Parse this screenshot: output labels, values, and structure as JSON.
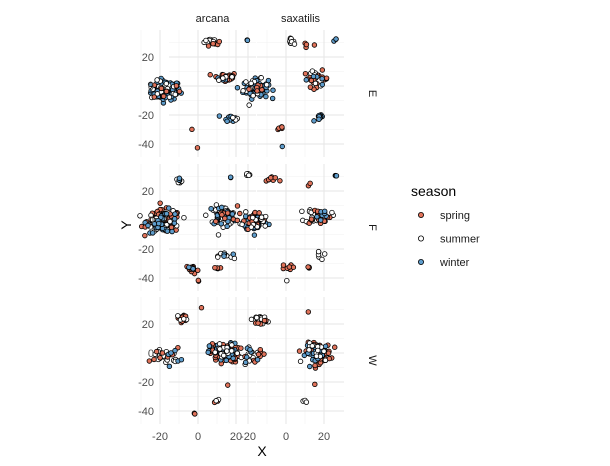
{
  "chart_data": {
    "type": "scatter",
    "facet_columns": [
      "arcana",
      "saxatilis"
    ],
    "facet_rows": [
      "E",
      "F",
      "W"
    ],
    "xlabel": "X",
    "ylabel": "Y",
    "x_ticks": [
      -20,
      0,
      20
    ],
    "y_ticks": [
      -40,
      -20,
      0,
      20
    ],
    "xlim": [
      -35,
      30
    ],
    "ylim": [
      -45,
      36
    ],
    "legend": {
      "title": "season",
      "position": "right",
      "entries": [
        {
          "label": "spring",
          "color": "#E1735A"
        },
        {
          "label": "summer",
          "color": "#FFFFFF"
        },
        {
          "label": "winter",
          "color": "#5E9CCB"
        }
      ]
    },
    "grid": true,
    "clusters": [
      {
        "facet": "arcana|E",
        "season": "winter",
        "cx": -17,
        "cy": -3,
        "sx": 7,
        "sy": 6,
        "n": 90
      },
      {
        "facet": "arcana|E",
        "season": "summer",
        "cx": -17,
        "cy": -3,
        "sx": 7,
        "sy": 6,
        "n": 18
      },
      {
        "facet": "arcana|E",
        "season": "spring",
        "cx": -17,
        "cy": -3,
        "sx": 7,
        "sy": 6,
        "n": 8
      },
      {
        "facet": "arcana|E",
        "season": "spring",
        "cx": 14,
        "cy": 6,
        "sx": 6,
        "sy": 3,
        "n": 24
      },
      {
        "facet": "arcana|E",
        "season": "winter",
        "cx": 14,
        "cy": 6,
        "sx": 6,
        "sy": 3,
        "n": 6
      },
      {
        "facet": "arcana|E",
        "season": "summer",
        "cx": 14,
        "cy": 6,
        "sx": 6,
        "sy": 3,
        "n": 5
      },
      {
        "facet": "arcana|E",
        "season": "summer",
        "cx": 8,
        "cy": 31,
        "sx": 4,
        "sy": 2,
        "n": 12
      },
      {
        "facet": "arcana|E",
        "season": "spring",
        "cx": 8,
        "cy": 29,
        "sx": 4,
        "sy": 2,
        "n": 5
      },
      {
        "facet": "arcana|E",
        "season": "winter",
        "cx": 26,
        "cy": 32,
        "sx": 1,
        "sy": 1,
        "n": 3
      },
      {
        "facet": "arcana|E",
        "season": "winter",
        "cx": 17,
        "cy": -22,
        "sx": 3,
        "sy": 2,
        "n": 14
      },
      {
        "facet": "arcana|E",
        "season": "summer",
        "cx": 17,
        "cy": -22,
        "sx": 3,
        "sy": 2,
        "n": 3
      },
      {
        "facet": "arcana|E",
        "season": "spring",
        "cx": -3,
        "cy": -30,
        "sx": 0.5,
        "sy": 0.5,
        "n": 1
      },
      {
        "facet": "arcana|E",
        "season": "spring",
        "cx": 0,
        "cy": -42,
        "sx": 0.5,
        "sy": 0.5,
        "n": 1
      },
      {
        "facet": "saxatilis|E",
        "season": "winter",
        "cx": -16,
        "cy": -2,
        "sx": 6,
        "sy": 6,
        "n": 60
      },
      {
        "facet": "saxatilis|E",
        "season": "summer",
        "cx": -16,
        "cy": -2,
        "sx": 6,
        "sy": 6,
        "n": 14
      },
      {
        "facet": "saxatilis|E",
        "season": "spring",
        "cx": -16,
        "cy": -2,
        "sx": 6,
        "sy": 6,
        "n": 6
      },
      {
        "facet": "saxatilis|E",
        "season": "spring",
        "cx": 16,
        "cy": 5,
        "sx": 6,
        "sy": 5,
        "n": 22
      },
      {
        "facet": "saxatilis|E",
        "season": "summer",
        "cx": 16,
        "cy": 5,
        "sx": 6,
        "sy": 5,
        "n": 6
      },
      {
        "facet": "saxatilis|E",
        "season": "winter",
        "cx": 16,
        "cy": 5,
        "sx": 6,
        "sy": 5,
        "n": 5
      },
      {
        "facet": "saxatilis|E",
        "season": "summer",
        "cx": 2,
        "cy": 31,
        "sx": 2,
        "sy": 1.5,
        "n": 12
      },
      {
        "facet": "saxatilis|E",
        "season": "spring",
        "cx": 12,
        "cy": 28,
        "sx": 3,
        "sy": 2,
        "n": 4
      },
      {
        "facet": "saxatilis|E",
        "season": "winter",
        "cx": 26,
        "cy": 32,
        "sx": 1,
        "sy": 1,
        "n": 3
      },
      {
        "facet": "saxatilis|E",
        "season": "winter",
        "cx": 18,
        "cy": -22,
        "sx": 3,
        "sy": 2,
        "n": 10
      },
      {
        "facet": "saxatilis|E",
        "season": "spring",
        "cx": -3,
        "cy": -29,
        "sx": 1.5,
        "sy": 1.5,
        "n": 5
      },
      {
        "facet": "saxatilis|E",
        "season": "winter",
        "cx": -2,
        "cy": -42,
        "sx": 0.5,
        "sy": 0.5,
        "n": 1
      },
      {
        "facet": "arcana|F",
        "season": "spring",
        "cx": -18,
        "cy": -1,
        "sx": 8,
        "sy": 7,
        "n": 110
      },
      {
        "facet": "arcana|F",
        "season": "summer",
        "cx": -18,
        "cy": -1,
        "sx": 8,
        "sy": 7,
        "n": 30
      },
      {
        "facet": "arcana|F",
        "season": "winter",
        "cx": -18,
        "cy": -1,
        "sx": 8,
        "sy": 7,
        "n": 25
      },
      {
        "facet": "arcana|F",
        "season": "summer",
        "cx": 13,
        "cy": 3,
        "sx": 7,
        "sy": 6,
        "n": 40
      },
      {
        "facet": "arcana|F",
        "season": "winter",
        "cx": 13,
        "cy": 3,
        "sx": 7,
        "sy": 6,
        "n": 20
      },
      {
        "facet": "arcana|F",
        "season": "spring",
        "cx": 13,
        "cy": 3,
        "sx": 7,
        "sy": 6,
        "n": 10
      },
      {
        "facet": "arcana|F",
        "season": "summer",
        "cx": -10,
        "cy": 27,
        "sx": 2,
        "sy": 2,
        "n": 8
      },
      {
        "facet": "arcana|F",
        "season": "winter",
        "cx": -10,
        "cy": 27,
        "sx": 2,
        "sy": 2,
        "n": 3
      },
      {
        "facet": "arcana|F",
        "season": "summer",
        "cx": 26,
        "cy": 31,
        "sx": 1.5,
        "sy": 1,
        "n": 5
      },
      {
        "facet": "arcana|F",
        "season": "winter",
        "cx": 17,
        "cy": 29,
        "sx": 1,
        "sy": 1,
        "n": 2
      },
      {
        "facet": "arcana|F",
        "season": "summer",
        "cx": 15,
        "cy": -25,
        "sx": 4,
        "sy": 3,
        "n": 8
      },
      {
        "facet": "arcana|F",
        "season": "winter",
        "cx": 15,
        "cy": -25,
        "sx": 4,
        "sy": 3,
        "n": 3
      },
      {
        "facet": "arcana|F",
        "season": "spring",
        "cx": -3,
        "cy": -34,
        "sx": 3,
        "sy": 3,
        "n": 14
      },
      {
        "facet": "arcana|F",
        "season": "winter",
        "cx": -3,
        "cy": -34,
        "sx": 3,
        "sy": 3,
        "n": 4
      },
      {
        "facet": "arcana|F",
        "season": "spring",
        "cx": 10,
        "cy": -33,
        "sx": 2,
        "sy": 1.5,
        "n": 6
      },
      {
        "facet": "arcana|F",
        "season": "spring",
        "cx": 0,
        "cy": -42,
        "sx": 0.7,
        "sy": 0.5,
        "n": 2
      },
      {
        "facet": "saxatilis|F",
        "season": "winter",
        "cx": -16,
        "cy": -1,
        "sx": 6,
        "sy": 6,
        "n": 40
      },
      {
        "facet": "saxatilis|F",
        "season": "spring",
        "cx": -16,
        "cy": -1,
        "sx": 6,
        "sy": 6,
        "n": 20
      },
      {
        "facet": "saxatilis|F",
        "season": "summer",
        "cx": -16,
        "cy": -1,
        "sx": 6,
        "sy": 6,
        "n": 12
      },
      {
        "facet": "saxatilis|F",
        "season": "summer",
        "cx": 17,
        "cy": 3,
        "sx": 6,
        "sy": 5,
        "n": 20
      },
      {
        "facet": "saxatilis|F",
        "season": "spring",
        "cx": 17,
        "cy": 3,
        "sx": 6,
        "sy": 5,
        "n": 14
      },
      {
        "facet": "saxatilis|F",
        "season": "winter",
        "cx": 17,
        "cy": 3,
        "sx": 6,
        "sy": 5,
        "n": 8
      },
      {
        "facet": "saxatilis|F",
        "season": "spring",
        "cx": -7,
        "cy": 28,
        "sx": 6,
        "sy": 3,
        "n": 8
      },
      {
        "facet": "saxatilis|F",
        "season": "winter",
        "cx": 26,
        "cy": 31,
        "sx": 1,
        "sy": 1,
        "n": 3
      },
      {
        "facet": "saxatilis|F",
        "season": "spring",
        "cx": 12,
        "cy": 24,
        "sx": 2,
        "sy": 1,
        "n": 2
      },
      {
        "facet": "saxatilis|F",
        "season": "summer",
        "cx": 17,
        "cy": -24,
        "sx": 3,
        "sy": 3,
        "n": 6
      },
      {
        "facet": "saxatilis|F",
        "season": "spring",
        "cx": 0,
        "cy": -33,
        "sx": 3,
        "sy": 2,
        "n": 8
      },
      {
        "facet": "saxatilis|F",
        "season": "spring",
        "cx": 12,
        "cy": -33,
        "sx": 1.5,
        "sy": 1,
        "n": 3
      },
      {
        "facet": "saxatilis|F",
        "season": "summer",
        "cx": 0,
        "cy": -42,
        "sx": 0.5,
        "sy": 0.5,
        "n": 1
      },
      {
        "facet": "arcana|W",
        "season": "spring",
        "cx": 14,
        "cy": 0,
        "sx": 7,
        "sy": 6,
        "n": 60
      },
      {
        "facet": "arcana|W",
        "season": "winter",
        "cx": 14,
        "cy": 0,
        "sx": 7,
        "sy": 6,
        "n": 40
      },
      {
        "facet": "arcana|W",
        "season": "summer",
        "cx": 14,
        "cy": 0,
        "sx": 7,
        "sy": 6,
        "n": 20
      },
      {
        "facet": "arcana|W",
        "season": "summer",
        "cx": -17,
        "cy": -2,
        "sx": 7,
        "sy": 5,
        "n": 22
      },
      {
        "facet": "arcana|W",
        "season": "spring",
        "cx": -17,
        "cy": -2,
        "sx": 7,
        "sy": 5,
        "n": 8
      },
      {
        "facet": "arcana|W",
        "season": "winter",
        "cx": -17,
        "cy": -2,
        "sx": 7,
        "sy": 5,
        "n": 6
      },
      {
        "facet": "arcana|W",
        "season": "spring",
        "cx": -8,
        "cy": 24,
        "sx": 2.5,
        "sy": 2.5,
        "n": 14
      },
      {
        "facet": "arcana|W",
        "season": "summer",
        "cx": -8,
        "cy": 24,
        "sx": 2.5,
        "sy": 2.5,
        "n": 4
      },
      {
        "facet": "arcana|W",
        "season": "spring",
        "cx": 2,
        "cy": 31,
        "sx": 0.5,
        "sy": 0.5,
        "n": 1
      },
      {
        "facet": "arcana|W",
        "season": "spring",
        "cx": 16,
        "cy": -21,
        "sx": 1,
        "sy": 1,
        "n": 1
      },
      {
        "facet": "arcana|W",
        "season": "spring",
        "cx": 10,
        "cy": -33,
        "sx": 1.5,
        "sy": 1,
        "n": 3
      },
      {
        "facet": "arcana|W",
        "season": "summer",
        "cx": 10,
        "cy": -33,
        "sx": 1.5,
        "sy": 1,
        "n": 2
      },
      {
        "facet": "arcana|W",
        "season": "spring",
        "cx": -2,
        "cy": -42,
        "sx": 0.7,
        "sy": 0.5,
        "n": 2
      },
      {
        "facet": "saxatilis|W",
        "season": "spring",
        "cx": 17,
        "cy": 0,
        "sx": 6,
        "sy": 6,
        "n": 70
      },
      {
        "facet": "saxatilis|W",
        "season": "winter",
        "cx": 17,
        "cy": 0,
        "sx": 6,
        "sy": 6,
        "n": 30
      },
      {
        "facet": "saxatilis|W",
        "season": "summer",
        "cx": 17,
        "cy": 0,
        "sx": 6,
        "sy": 6,
        "n": 15
      },
      {
        "facet": "saxatilis|W",
        "season": "summer",
        "cx": -13,
        "cy": 23,
        "sx": 2.5,
        "sy": 2.5,
        "n": 22
      },
      {
        "facet": "saxatilis|W",
        "season": "spring",
        "cx": -13,
        "cy": 23,
        "sx": 2.5,
        "sy": 2.5,
        "n": 5
      },
      {
        "facet": "saxatilis|W",
        "season": "summer",
        "cx": -18,
        "cy": -2,
        "sx": 7,
        "sy": 5,
        "n": 8
      },
      {
        "facet": "saxatilis|W",
        "season": "spring",
        "cx": -18,
        "cy": -2,
        "sx": 7,
        "sy": 5,
        "n": 8
      },
      {
        "facet": "saxatilis|W",
        "season": "winter",
        "cx": -18,
        "cy": -2,
        "sx": 7,
        "sy": 5,
        "n": 6
      },
      {
        "facet": "saxatilis|W",
        "season": "spring",
        "cx": 12,
        "cy": 28,
        "sx": 1,
        "sy": 1,
        "n": 1
      },
      {
        "facet": "saxatilis|W",
        "season": "spring",
        "cx": 15,
        "cy": -21,
        "sx": 1,
        "sy": 1,
        "n": 1
      },
      {
        "facet": "saxatilis|W",
        "season": "summer",
        "cx": 10,
        "cy": -33,
        "sx": 1.5,
        "sy": 1,
        "n": 3
      }
    ]
  }
}
